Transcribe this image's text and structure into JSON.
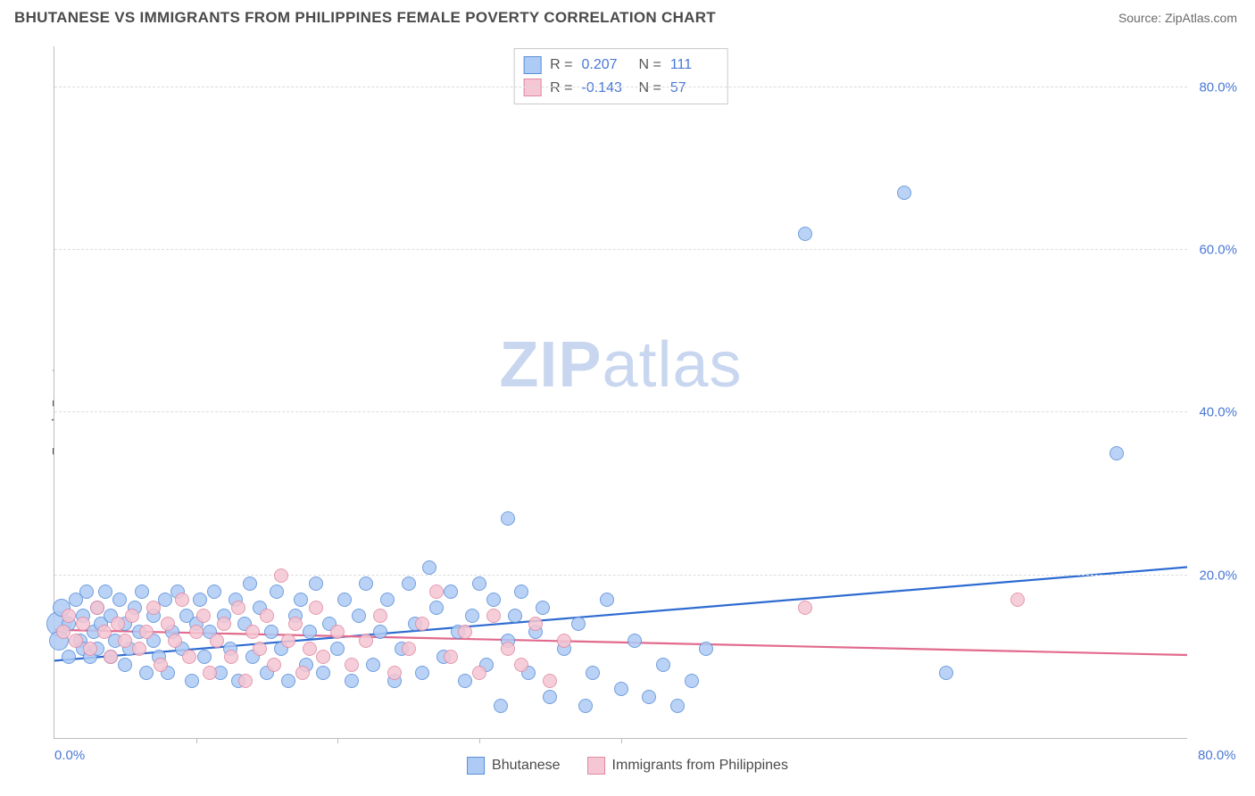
{
  "title": "BHUTANESE VS IMMIGRANTS FROM PHILIPPINES FEMALE POVERTY CORRELATION CHART",
  "source": "Source: ZipAtlas.com",
  "y_axis_label": "Female Poverty",
  "watermark": {
    "bold": "ZIP",
    "rest": "atlas"
  },
  "chart": {
    "type": "scatter",
    "xlim": [
      0,
      80
    ],
    "ylim": [
      0,
      85
    ],
    "x_ticks": [
      0,
      80
    ],
    "x_tick_marks": [
      10,
      20,
      30,
      40
    ],
    "y_ticks": [
      20,
      40,
      60,
      80
    ],
    "tick_suffix": ".0%",
    "background_color": "#ffffff",
    "grid_color": "#dcdcdc",
    "axis_color": "#bdbdbd",
    "tick_label_color": "#4a78d6",
    "marker_border_width": 1.2,
    "marker_opacity_fill": 0.35,
    "default_marker_radius": 8,
    "series": [
      {
        "name": "Bhutanese",
        "fill": "#aecbf5",
        "stroke": "#5a8fd6",
        "trend": {
          "x1": 0,
          "y1": 9.5,
          "x2": 80,
          "y2": 21.0,
          "color": "#2e6bd1",
          "width": 2.2
        },
        "stats": {
          "R": "0.207",
          "N": "111"
        },
        "points": [
          {
            "x": 0.3,
            "y": 14,
            "r": 14
          },
          {
            "x": 0.3,
            "y": 12,
            "r": 11
          },
          {
            "x": 0.5,
            "y": 16,
            "r": 10
          },
          {
            "x": 1,
            "y": 10
          },
          {
            "x": 1,
            "y": 14
          },
          {
            "x": 1.5,
            "y": 17
          },
          {
            "x": 1.8,
            "y": 12
          },
          {
            "x": 2,
            "y": 15
          },
          {
            "x": 2,
            "y": 11
          },
          {
            "x": 2.3,
            "y": 18
          },
          {
            "x": 2.5,
            "y": 10
          },
          {
            "x": 2.8,
            "y": 13
          },
          {
            "x": 3,
            "y": 16
          },
          {
            "x": 3,
            "y": 11
          },
          {
            "x": 3.3,
            "y": 14
          },
          {
            "x": 3.6,
            "y": 18
          },
          {
            "x": 4,
            "y": 10
          },
          {
            "x": 4,
            "y": 15
          },
          {
            "x": 4.3,
            "y": 12
          },
          {
            "x": 4.6,
            "y": 17
          },
          {
            "x": 5,
            "y": 9
          },
          {
            "x": 5,
            "y": 14
          },
          {
            "x": 5.3,
            "y": 11
          },
          {
            "x": 5.7,
            "y": 16
          },
          {
            "x": 6,
            "y": 13
          },
          {
            "x": 6.2,
            "y": 18
          },
          {
            "x": 6.5,
            "y": 8
          },
          {
            "x": 7,
            "y": 12
          },
          {
            "x": 7,
            "y": 15
          },
          {
            "x": 7.4,
            "y": 10
          },
          {
            "x": 7.8,
            "y": 17
          },
          {
            "x": 8,
            "y": 8
          },
          {
            "x": 8.3,
            "y": 13
          },
          {
            "x": 8.7,
            "y": 18
          },
          {
            "x": 9,
            "y": 11
          },
          {
            "x": 9.3,
            "y": 15
          },
          {
            "x": 9.7,
            "y": 7
          },
          {
            "x": 10,
            "y": 14
          },
          {
            "x": 10.3,
            "y": 17
          },
          {
            "x": 10.6,
            "y": 10
          },
          {
            "x": 11,
            "y": 13
          },
          {
            "x": 11.3,
            "y": 18
          },
          {
            "x": 11.7,
            "y": 8
          },
          {
            "x": 12,
            "y": 15
          },
          {
            "x": 12.4,
            "y": 11
          },
          {
            "x": 12.8,
            "y": 17
          },
          {
            "x": 13,
            "y": 7
          },
          {
            "x": 13.4,
            "y": 14
          },
          {
            "x": 13.8,
            "y": 19
          },
          {
            "x": 14,
            "y": 10
          },
          {
            "x": 14.5,
            "y": 16
          },
          {
            "x": 15,
            "y": 8
          },
          {
            "x": 15.3,
            "y": 13
          },
          {
            "x": 15.7,
            "y": 18
          },
          {
            "x": 16,
            "y": 11
          },
          {
            "x": 16.5,
            "y": 7
          },
          {
            "x": 17,
            "y": 15
          },
          {
            "x": 17.4,
            "y": 17
          },
          {
            "x": 17.8,
            "y": 9
          },
          {
            "x": 18,
            "y": 13
          },
          {
            "x": 18.5,
            "y": 19
          },
          {
            "x": 19,
            "y": 8
          },
          {
            "x": 19.4,
            "y": 14
          },
          {
            "x": 20,
            "y": 11
          },
          {
            "x": 20.5,
            "y": 17
          },
          {
            "x": 21,
            "y": 7
          },
          {
            "x": 21.5,
            "y": 15
          },
          {
            "x": 22,
            "y": 19
          },
          {
            "x": 22.5,
            "y": 9
          },
          {
            "x": 23,
            "y": 13
          },
          {
            "x": 23.5,
            "y": 17
          },
          {
            "x": 24,
            "y": 7
          },
          {
            "x": 24.5,
            "y": 11
          },
          {
            "x": 25,
            "y": 19
          },
          {
            "x": 25.5,
            "y": 14
          },
          {
            "x": 26,
            "y": 8
          },
          {
            "x": 26.5,
            "y": 21
          },
          {
            "x": 27,
            "y": 16
          },
          {
            "x": 27.5,
            "y": 10
          },
          {
            "x": 28,
            "y": 18
          },
          {
            "x": 28.5,
            "y": 13
          },
          {
            "x": 29,
            "y": 7
          },
          {
            "x": 29.5,
            "y": 15
          },
          {
            "x": 30,
            "y": 19
          },
          {
            "x": 30.5,
            "y": 9
          },
          {
            "x": 31,
            "y": 17
          },
          {
            "x": 31.5,
            "y": 4
          },
          {
            "x": 32,
            "y": 12
          },
          {
            "x": 32.5,
            "y": 15
          },
          {
            "x": 33,
            "y": 18
          },
          {
            "x": 33.5,
            "y": 8
          },
          {
            "x": 34,
            "y": 13
          },
          {
            "x": 34.5,
            "y": 16
          },
          {
            "x": 35,
            "y": 5
          },
          {
            "x": 36,
            "y": 11
          },
          {
            "x": 37,
            "y": 14
          },
          {
            "x": 37.5,
            "y": 4
          },
          {
            "x": 38,
            "y": 8
          },
          {
            "x": 39,
            "y": 17
          },
          {
            "x": 40,
            "y": 6
          },
          {
            "x": 41,
            "y": 12
          },
          {
            "x": 42,
            "y": 5
          },
          {
            "x": 43,
            "y": 9
          },
          {
            "x": 44,
            "y": 4
          },
          {
            "x": 45,
            "y": 7
          },
          {
            "x": 46,
            "y": 11
          },
          {
            "x": 32,
            "y": 27
          },
          {
            "x": 53,
            "y": 62
          },
          {
            "x": 60,
            "y": 67
          },
          {
            "x": 63,
            "y": 8
          },
          {
            "x": 75,
            "y": 35
          }
        ]
      },
      {
        "name": "Immigrants from Philippines",
        "fill": "#f5c6d3",
        "stroke": "#e08aa3",
        "trend": {
          "x1": 0,
          "y1": 13.3,
          "x2": 80,
          "y2": 10.2,
          "color": "#e26a8e",
          "width": 2.2
        },
        "stats": {
          "R": "-0.143",
          "N": "57"
        },
        "points": [
          {
            "x": 0.6,
            "y": 13
          },
          {
            "x": 1,
            "y": 15
          },
          {
            "x": 1.5,
            "y": 12
          },
          {
            "x": 2,
            "y": 14
          },
          {
            "x": 2.5,
            "y": 11
          },
          {
            "x": 3,
            "y": 16
          },
          {
            "x": 3.5,
            "y": 13
          },
          {
            "x": 4,
            "y": 10
          },
          {
            "x": 4.5,
            "y": 14
          },
          {
            "x": 5,
            "y": 12
          },
          {
            "x": 5.5,
            "y": 15
          },
          {
            "x": 6,
            "y": 11
          },
          {
            "x": 6.5,
            "y": 13
          },
          {
            "x": 7,
            "y": 16
          },
          {
            "x": 7.5,
            "y": 9
          },
          {
            "x": 8,
            "y": 14
          },
          {
            "x": 8.5,
            "y": 12
          },
          {
            "x": 9,
            "y": 17
          },
          {
            "x": 9.5,
            "y": 10
          },
          {
            "x": 10,
            "y": 13
          },
          {
            "x": 10.5,
            "y": 15
          },
          {
            "x": 11,
            "y": 8
          },
          {
            "x": 11.5,
            "y": 12
          },
          {
            "x": 12,
            "y": 14
          },
          {
            "x": 12.5,
            "y": 10
          },
          {
            "x": 13,
            "y": 16
          },
          {
            "x": 13.5,
            "y": 7
          },
          {
            "x": 14,
            "y": 13
          },
          {
            "x": 14.5,
            "y": 11
          },
          {
            "x": 15,
            "y": 15
          },
          {
            "x": 15.5,
            "y": 9
          },
          {
            "x": 16,
            "y": 20
          },
          {
            "x": 16.5,
            "y": 12
          },
          {
            "x": 17,
            "y": 14
          },
          {
            "x": 17.5,
            "y": 8
          },
          {
            "x": 18,
            "y": 11
          },
          {
            "x": 18.5,
            "y": 16
          },
          {
            "x": 19,
            "y": 10
          },
          {
            "x": 20,
            "y": 13
          },
          {
            "x": 21,
            "y": 9
          },
          {
            "x": 22,
            "y": 12
          },
          {
            "x": 23,
            "y": 15
          },
          {
            "x": 24,
            "y": 8
          },
          {
            "x": 25,
            "y": 11
          },
          {
            "x": 26,
            "y": 14
          },
          {
            "x": 27,
            "y": 18
          },
          {
            "x": 28,
            "y": 10
          },
          {
            "x": 29,
            "y": 13
          },
          {
            "x": 30,
            "y": 8
          },
          {
            "x": 31,
            "y": 15
          },
          {
            "x": 32,
            "y": 11
          },
          {
            "x": 33,
            "y": 9
          },
          {
            "x": 34,
            "y": 14
          },
          {
            "x": 35,
            "y": 7
          },
          {
            "x": 36,
            "y": 12
          },
          {
            "x": 53,
            "y": 16
          },
          {
            "x": 68,
            "y": 17
          }
        ]
      }
    ]
  },
  "stats_box": {
    "r_label": "R =",
    "n_label": "N ="
  },
  "legend": {
    "items": [
      {
        "label": "Bhutanese",
        "fill": "#aecbf5",
        "stroke": "#5a8fd6"
      },
      {
        "label": "Immigrants from Philippines",
        "fill": "#f5c6d3",
        "stroke": "#e08aa3"
      }
    ]
  }
}
